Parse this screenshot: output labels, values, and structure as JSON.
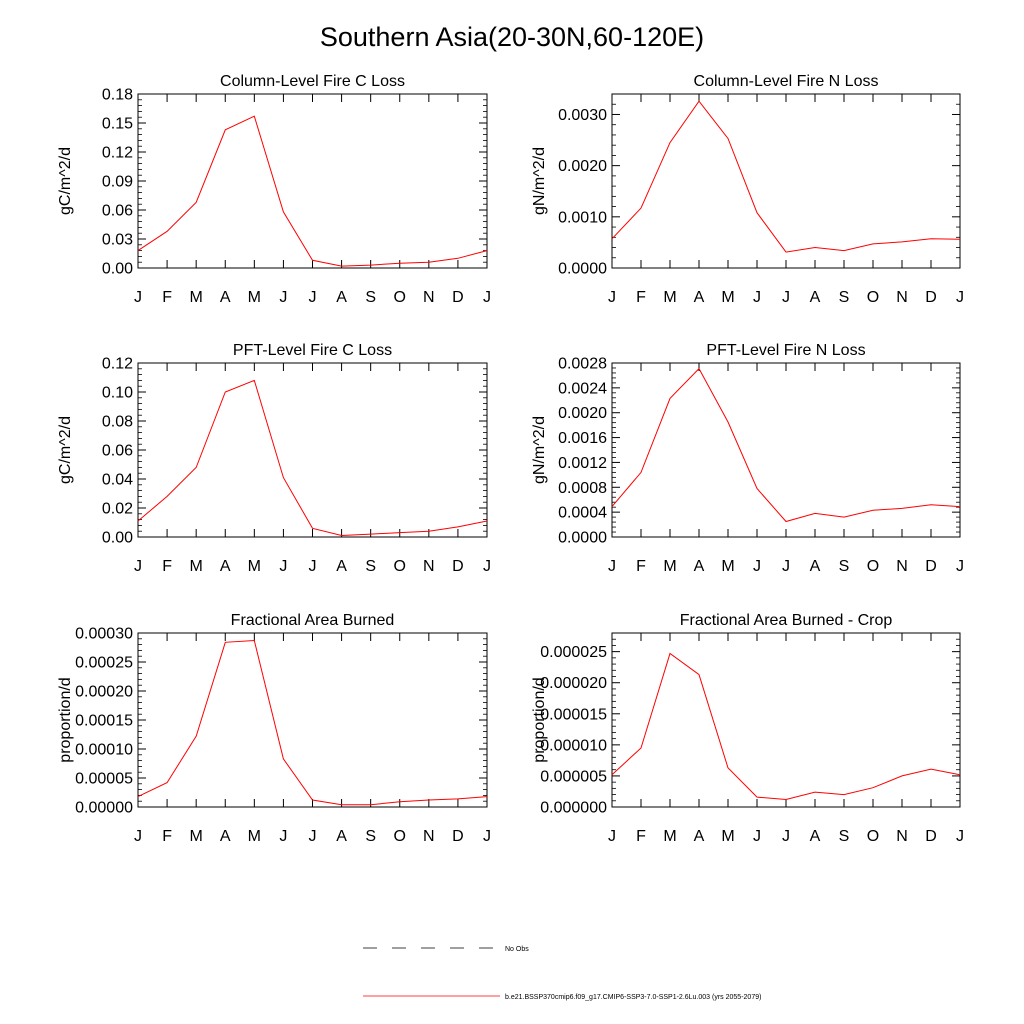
{
  "title": "Southern Asia(20-30N,60-120E)",
  "colors": {
    "model": "#ff0000",
    "obs": "#000000",
    "axis": "#000000"
  },
  "legend": {
    "obs_label": "No Obs",
    "model_label": "b.e21.BSSP370cmip6.f09_g17.CMIP6-SSP3-7.0-SSP1-2.6Lu.003 (yrs 2055-2079)"
  },
  "chart_data": [
    {
      "type": "line",
      "title": "Column-Level Fire C Loss",
      "ylabel": "gC/m^2/d",
      "categories": [
        "J",
        "F",
        "M",
        "A",
        "M",
        "J",
        "J",
        "A",
        "S",
        "O",
        "N",
        "D",
        "J"
      ],
      "ylim": [
        0,
        0.18
      ],
      "yticks": [
        "0.00",
        "0.03",
        "0.06",
        "0.09",
        "0.12",
        "0.15",
        "0.18"
      ],
      "series": [
        {
          "values": [
            0.018,
            0.038,
            0.068,
            0.143,
            0.157,
            0.058,
            0.008,
            0.002,
            0.003,
            0.005,
            0.006,
            0.01,
            0.018
          ]
        }
      ]
    },
    {
      "type": "line",
      "title": "Column-Level Fire N Loss",
      "ylabel": "gN/m^2/d",
      "categories": [
        "J",
        "F",
        "M",
        "A",
        "M",
        "J",
        "J",
        "A",
        "S",
        "O",
        "N",
        "D",
        "J"
      ],
      "ylim": [
        0,
        0.0034
      ],
      "yticks": [
        "0.0000",
        "0.0010",
        "0.0020",
        "0.0030"
      ],
      "series": [
        {
          "values": [
            0.00057,
            0.00117,
            0.00245,
            0.00326,
            0.00253,
            0.00108,
            0.00031,
            0.0004,
            0.00034,
            0.00047,
            0.00051,
            0.00057,
            0.00056
          ]
        }
      ]
    },
    {
      "type": "line",
      "title": "PFT-Level Fire C Loss",
      "ylabel": "gC/m^2/d",
      "categories": [
        "J",
        "F",
        "M",
        "A",
        "M",
        "J",
        "J",
        "A",
        "S",
        "O",
        "N",
        "D",
        "J"
      ],
      "ylim": [
        0,
        0.12
      ],
      "yticks": [
        "0.00",
        "0.02",
        "0.04",
        "0.06",
        "0.08",
        "0.10",
        "0.12"
      ],
      "series": [
        {
          "values": [
            0.011,
            0.028,
            0.048,
            0.1,
            0.108,
            0.041,
            0.006,
            0.001,
            0.002,
            0.003,
            0.004,
            0.007,
            0.011
          ]
        }
      ]
    },
    {
      "type": "line",
      "title": "PFT-Level Fire N Loss",
      "ylabel": "gN/m^2/d",
      "categories": [
        "J",
        "F",
        "M",
        "A",
        "M",
        "J",
        "J",
        "A",
        "S",
        "O",
        "N",
        "D",
        "J"
      ],
      "ylim": [
        0,
        0.0028
      ],
      "yticks": [
        "0.0000",
        "0.0004",
        "0.0008",
        "0.0012",
        "0.0016",
        "0.0020",
        "0.0024",
        "0.0028"
      ],
      "series": [
        {
          "values": [
            0.00049,
            0.00104,
            0.00223,
            0.00271,
            0.00185,
            0.00078,
            0.00025,
            0.00038,
            0.00032,
            0.00043,
            0.00046,
            0.00052,
            0.00049
          ]
        }
      ]
    },
    {
      "type": "line",
      "title": "Fractional Area Burned",
      "ylabel": "proportion/d",
      "categories": [
        "J",
        "F",
        "M",
        "A",
        "M",
        "J",
        "J",
        "A",
        "S",
        "O",
        "N",
        "D",
        "J"
      ],
      "ylim": [
        0,
        0.0003
      ],
      "yticks": [
        "0.00000",
        "0.00005",
        "0.00010",
        "0.00015",
        "0.00020",
        "0.00025",
        "0.00030"
      ],
      "series": [
        {
          "values": [
            1.8e-05,
            4.2e-05,
            0.000122,
            0.000284,
            0.000287,
            8.3e-05,
            1.2e-05,
            4e-06,
            4e-06,
            9e-06,
            1.2e-05,
            1.4e-05,
            1.8e-05
          ]
        }
      ]
    },
    {
      "type": "line",
      "title": "Fractional Area Burned - Crop",
      "ylabel": "proportion/d",
      "categories": [
        "J",
        "F",
        "M",
        "A",
        "M",
        "J",
        "J",
        "A",
        "S",
        "O",
        "N",
        "D",
        "J"
      ],
      "ylim": [
        0,
        2.8e-05
      ],
      "yticks": [
        "0.000000",
        "0.000005",
        "0.000010",
        "0.000015",
        "0.000020",
        "0.000025"
      ],
      "series": [
        {
          "values": [
            5.2e-06,
            9.5e-06,
            2.47e-05,
            2.13e-05,
            6.3e-06,
            1.6e-06,
            1.2e-06,
            2.4e-06,
            2e-06,
            3.1e-06,
            5e-06,
            6.1e-06,
            5.2e-06
          ]
        }
      ]
    }
  ]
}
